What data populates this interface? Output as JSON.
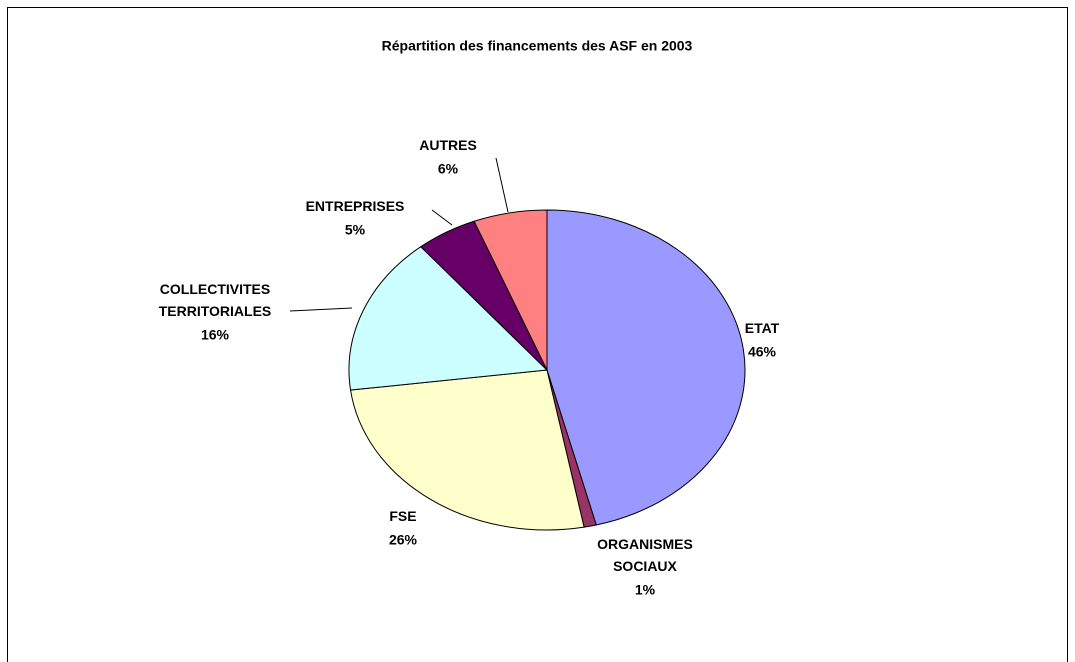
{
  "chart_data": {
    "type": "pie",
    "title": "Répartition des financements des ASF en 2003",
    "categories": [
      "ETAT",
      "ORGANISMES SOCIAUX",
      "FSE",
      "COLLECTIVITES TERRITORIALES",
      "ENTREPRISES",
      "AUTRES"
    ],
    "values": [
      46,
      1,
      26,
      16,
      5,
      6
    ],
    "value_labels": [
      "46%",
      "1%",
      "26%",
      "16%",
      "5%",
      "6%"
    ],
    "colors": [
      "#9999ff",
      "#993366",
      "#ffffcc",
      "#ccffff",
      "#660066",
      "#ff8080"
    ]
  }
}
